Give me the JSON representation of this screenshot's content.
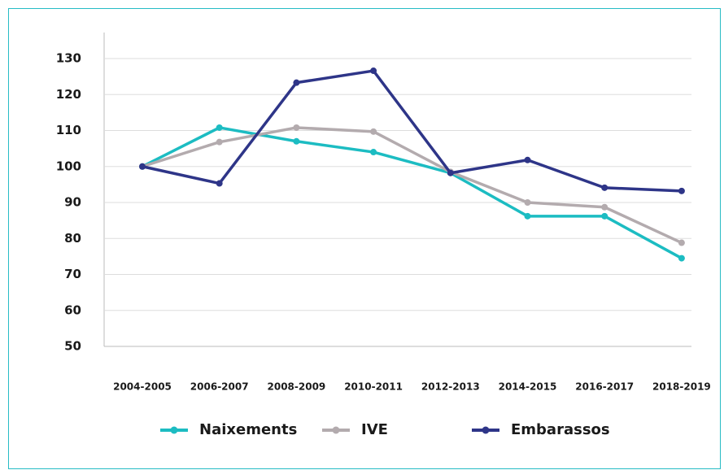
{
  "chart_data": {
    "type": "line",
    "categories": [
      "2004-2005",
      "2006-2007",
      "2008-2009",
      "2010-2011",
      "2012-2013",
      "2014-2015",
      "2016-2017",
      "2018-2019"
    ],
    "series": [
      {
        "name": "Naixements",
        "color": "#1cbcc2",
        "values": [
          100,
          110.8,
          107,
          104,
          98.2,
          86.2,
          86.2,
          74.5
        ]
      },
      {
        "name": "IVE",
        "color": "#b3abae",
        "values": [
          100,
          106.8,
          110.8,
          109.7,
          98.5,
          90,
          88.7,
          78.8
        ]
      },
      {
        "name": "Embarassos",
        "color": "#2e3588",
        "values": [
          100,
          95.3,
          123.3,
          126.6,
          98.2,
          101.8,
          94.1,
          93.2
        ]
      }
    ],
    "ylim": [
      50,
      130
    ],
    "yticks": [
      50,
      60,
      70,
      80,
      90,
      100,
      110,
      120,
      130
    ],
    "grid": true,
    "legend": "bottom"
  }
}
